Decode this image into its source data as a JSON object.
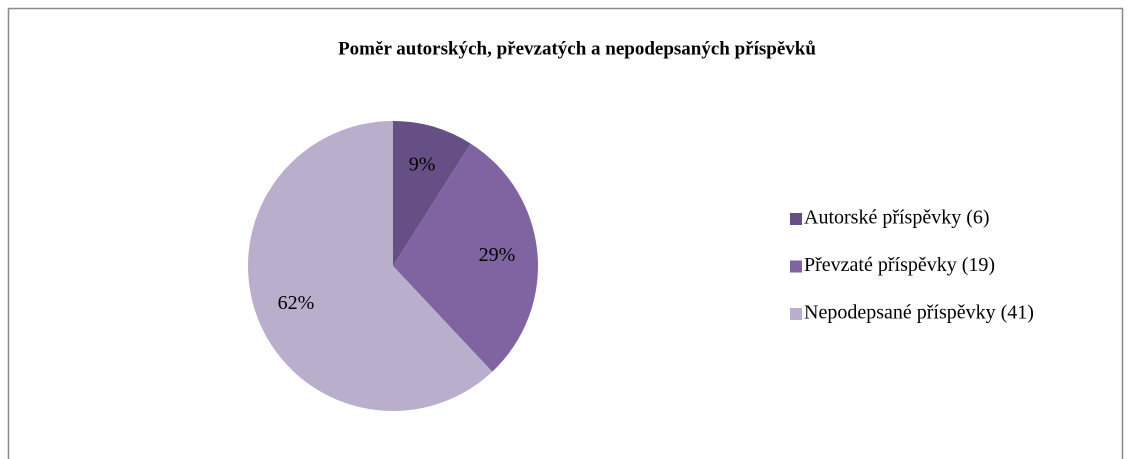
{
  "chart_data": {
    "type": "pie",
    "title": "Poměr autorských, převzatých a nepodepsaných příspěvků",
    "categories": [
      "Autorské příspěvky (6)",
      "Převzaté příspěvky (19)",
      "Nepodepsané příspěvky (41)"
    ],
    "values": [
      9,
      29,
      62
    ],
    "value_labels": [
      "9%",
      "29%",
      "62%"
    ],
    "colors": [
      "#664f84",
      "#8064a2",
      "#b9aecc"
    ],
    "legend": "right"
  }
}
